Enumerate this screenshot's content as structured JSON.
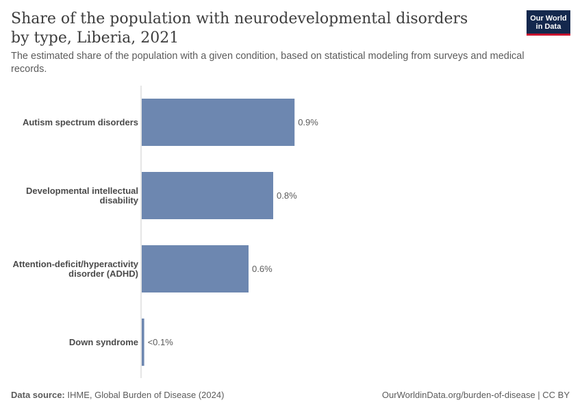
{
  "header": {
    "title": "Share of the population with neurodevelopmental disorders by type, Liberia, 2021",
    "subtitle": "The estimated share of the population with a given condition, based on statistical modeling from surveys and medical records.",
    "logo_line1": "Our World",
    "logo_line2": "in Data"
  },
  "footer": {
    "source_label": "Data source:",
    "source_text": "IHME, Global Burden of Disease (2024)",
    "credit": "OurWorldinData.org/burden-of-disease | CC BY"
  },
  "colors": {
    "bar": "#6d87b0",
    "axis": "#cccccc"
  },
  "chart_data": {
    "type": "bar",
    "orientation": "horizontal",
    "categories": [
      [
        "Autism spectrum disorders"
      ],
      [
        "Developmental intellectual",
        "disability"
      ],
      [
        "Attention-deficit/hyperactivity",
        "disorder (ADHD)"
      ],
      [
        "Down syndrome"
      ]
    ],
    "values": [
      0.93,
      0.8,
      0.65,
      0.015
    ],
    "value_labels": [
      "0.9%",
      "0.8%",
      "0.6%",
      "<0.1%"
    ],
    "xlim": [
      0,
      2
    ],
    "grid": false
  }
}
